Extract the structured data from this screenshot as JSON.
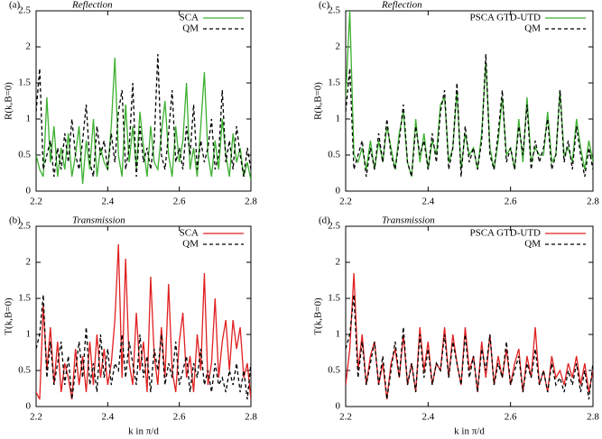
{
  "chart_data": [
    {
      "type": "line",
      "panel_label": "(a)",
      "subtitle": "Reflection",
      "ylabel": "R(k,B=0)",
      "legend": "upper right",
      "xlim": [
        2.2,
        2.8
      ],
      "ylim": [
        0,
        2.5
      ],
      "xticks": [
        2.2,
        2.4,
        2.6,
        2.8
      ],
      "yticks": [
        0,
        0.5,
        1,
        1.5,
        2,
        2.5
      ],
      "x": [
        2.2,
        2.21,
        2.22,
        2.23,
        2.24,
        2.25,
        2.26,
        2.27,
        2.28,
        2.29,
        2.3,
        2.31,
        2.32,
        2.33,
        2.34,
        2.35,
        2.36,
        2.37,
        2.38,
        2.39,
        2.4,
        2.41,
        2.42,
        2.43,
        2.44,
        2.45,
        2.46,
        2.47,
        2.48,
        2.49,
        2.5,
        2.51,
        2.52,
        2.53,
        2.54,
        2.55,
        2.56,
        2.57,
        2.58,
        2.59,
        2.6,
        2.61,
        2.62,
        2.63,
        2.64,
        2.65,
        2.66,
        2.67,
        2.68,
        2.69,
        2.7,
        2.71,
        2.72,
        2.73,
        2.74,
        2.75,
        2.76,
        2.77,
        2.78,
        2.79,
        2.8
      ],
      "series": [
        {
          "name": "SCA",
          "color": "#3cb030",
          "linestyle": "solid",
          "values": [
            0.5,
            0.3,
            0.2,
            1.3,
            0.4,
            0.9,
            0.2,
            0.6,
            0.3,
            0.8,
            0.2,
            0.5,
            0.9,
            0.1,
            0.7,
            0.3,
            1.0,
            0.2,
            0.6,
            0.4,
            0.3,
            0.9,
            1.85,
            0.5,
            0.2,
            1.2,
            0.4,
            0.9,
            0.3,
            1.1,
            0.6,
            0.2,
            0.9,
            0.4,
            0.3,
            0.8,
            1.25,
            0.5,
            0.2,
            0.9,
            0.4,
            0.7,
            1.5,
            0.3,
            0.6,
            0.2,
            0.9,
            1.65,
            0.5,
            0.2,
            0.7,
            0.3,
            1.0,
            0.5,
            0.2,
            0.8,
            0.4,
            0.6,
            0.2,
            0.4,
            0.15
          ]
        },
        {
          "name": "QM",
          "color": "#000000",
          "linestyle": "dashed",
          "values": [
            1.1,
            1.7,
            0.3,
            0.5,
            0.7,
            0.2,
            0.6,
            0.3,
            0.8,
            0.4,
            1.0,
            0.5,
            0.3,
            0.7,
            1.2,
            0.4,
            0.2,
            0.9,
            0.5,
            0.7,
            0.3,
            0.8,
            0.4,
            1.1,
            1.4,
            0.3,
            0.6,
            1.5,
            0.2,
            0.9,
            0.4,
            0.6,
            0.3,
            0.7,
            1.9,
            0.5,
            0.3,
            0.8,
            1.4,
            0.4,
            0.6,
            0.3,
            0.9,
            0.5,
            1.2,
            0.3,
            0.7,
            0.4,
            0.6,
            1.0,
            0.3,
            0.5,
            1.4,
            0.4,
            0.7,
            0.3,
            0.9,
            0.5,
            0.2,
            0.6,
            0.3
          ]
        }
      ]
    },
    {
      "type": "line",
      "panel_label": "(b)",
      "subtitle": "Transmission",
      "ylabel": "T(k,B=0)",
      "xlabel": "k in π/d",
      "legend": "upper right",
      "xlim": [
        2.2,
        2.8
      ],
      "ylim": [
        0,
        2.5
      ],
      "xticks": [
        2.2,
        2.4,
        2.6,
        2.8
      ],
      "yticks": [
        0,
        0.5,
        1,
        1.5,
        2,
        2.5
      ],
      "x": [
        2.2,
        2.21,
        2.22,
        2.23,
        2.24,
        2.25,
        2.26,
        2.27,
        2.28,
        2.29,
        2.3,
        2.31,
        2.32,
        2.33,
        2.34,
        2.35,
        2.36,
        2.37,
        2.38,
        2.39,
        2.4,
        2.41,
        2.42,
        2.43,
        2.44,
        2.45,
        2.46,
        2.47,
        2.48,
        2.49,
        2.5,
        2.51,
        2.52,
        2.53,
        2.54,
        2.55,
        2.56,
        2.57,
        2.58,
        2.59,
        2.6,
        2.61,
        2.62,
        2.63,
        2.64,
        2.65,
        2.66,
        2.67,
        2.68,
        2.69,
        2.7,
        2.71,
        2.72,
        2.73,
        2.74,
        2.75,
        2.76,
        2.77,
        2.78,
        2.79,
        2.8
      ],
      "series": [
        {
          "name": "SCA",
          "color": "#e02020",
          "linestyle": "solid",
          "values": [
            0.2,
            0.1,
            1.4,
            0.5,
            1.1,
            0.3,
            0.9,
            0.2,
            0.6,
            0.4,
            0.1,
            0.8,
            0.3,
            0.7,
            0.2,
            0.9,
            0.3,
            1.0,
            0.4,
            0.8,
            0.3,
            0.6,
            1.2,
            2.25,
            0.4,
            2.05,
            0.6,
            0.3,
            1.3,
            0.5,
            0.9,
            0.2,
            1.8,
            0.7,
            0.3,
            1.1,
            0.4,
            1.7,
            0.5,
            0.2,
            0.9,
            1.3,
            0.4,
            0.7,
            0.2,
            1.0,
            0.5,
            1.85,
            0.3,
            0.6,
            1.5,
            0.4,
            0.9,
            1.2,
            0.5,
            1.2,
            0.8,
            1.1,
            0.4,
            0.6,
            0.1
          ]
        },
        {
          "name": "QM",
          "color": "#000000",
          "linestyle": "dashed",
          "values": [
            0.8,
            1.0,
            1.55,
            0.4,
            0.9,
            0.3,
            0.6,
            0.9,
            0.3,
            0.7,
            0.1,
            0.5,
            0.9,
            0.4,
            1.1,
            0.3,
            0.6,
            0.2,
            1.0,
            0.4,
            0.8,
            0.3,
            0.6,
            0.5,
            1.0,
            0.4,
            0.9,
            0.6,
            0.3,
            1.0,
            0.4,
            0.7,
            0.2,
            0.8,
            0.5,
            1.0,
            0.3,
            0.6,
            0.4,
            0.9,
            0.3,
            0.5,
            0.7,
            0.2,
            0.6,
            0.4,
            0.8,
            0.3,
            0.5,
            0.2,
            0.6,
            0.3,
            0.4,
            0.2,
            0.5,
            0.3,
            0.6,
            0.2,
            0.5,
            0.1,
            0.6
          ]
        }
      ]
    },
    {
      "type": "line",
      "panel_label": "(c)",
      "subtitle": "Reflection",
      "ylabel": "R(k,B=0)",
      "legend": "upper right",
      "xlim": [
        2.2,
        2.8
      ],
      "ylim": [
        0,
        2.5
      ],
      "xticks": [
        2.2,
        2.4,
        2.6,
        2.8
      ],
      "yticks": [
        0,
        0.5,
        1,
        1.5,
        2,
        2.5
      ],
      "x": [
        2.2,
        2.21,
        2.22,
        2.23,
        2.24,
        2.25,
        2.26,
        2.27,
        2.28,
        2.29,
        2.3,
        2.31,
        2.32,
        2.33,
        2.34,
        2.35,
        2.36,
        2.37,
        2.38,
        2.39,
        2.4,
        2.41,
        2.42,
        2.43,
        2.44,
        2.45,
        2.46,
        2.47,
        2.48,
        2.49,
        2.5,
        2.51,
        2.52,
        2.53,
        2.54,
        2.55,
        2.56,
        2.57,
        2.58,
        2.59,
        2.6,
        2.61,
        2.62,
        2.63,
        2.64,
        2.65,
        2.66,
        2.67,
        2.68,
        2.69,
        2.7,
        2.71,
        2.72,
        2.73,
        2.74,
        2.75,
        2.76,
        2.77,
        2.78,
        2.79,
        2.8
      ],
      "series": [
        {
          "name": "PSCA GTD-UTD",
          "color": "#3cb030",
          "linestyle": "solid",
          "values": [
            1.3,
            2.5,
            0.5,
            0.4,
            0.6,
            0.3,
            0.7,
            0.3,
            0.7,
            0.4,
            0.9,
            0.6,
            0.3,
            0.8,
            1.1,
            0.4,
            0.2,
            1.0,
            0.4,
            0.8,
            0.3,
            0.7,
            0.5,
            1.2,
            1.3,
            0.4,
            0.6,
            1.4,
            0.3,
            0.8,
            0.5,
            0.6,
            0.3,
            0.8,
            1.8,
            0.6,
            0.3,
            0.7,
            1.3,
            0.5,
            0.6,
            0.3,
            1.0,
            0.4,
            1.3,
            0.4,
            0.6,
            0.5,
            0.5,
            1.1,
            0.4,
            0.5,
            1.4,
            0.5,
            0.6,
            0.4,
            1.0,
            0.6,
            0.3,
            0.7,
            0.4
          ]
        },
        {
          "name": "QM",
          "color": "#000000",
          "linestyle": "dashed",
          "values": [
            1.1,
            1.7,
            0.3,
            0.5,
            0.7,
            0.2,
            0.6,
            0.3,
            0.8,
            0.4,
            1.0,
            0.5,
            0.3,
            0.7,
            1.2,
            0.4,
            0.2,
            0.9,
            0.5,
            0.7,
            0.3,
            0.8,
            0.4,
            1.1,
            1.4,
            0.3,
            0.6,
            1.5,
            0.2,
            0.9,
            0.4,
            0.6,
            0.3,
            0.7,
            1.9,
            0.5,
            0.3,
            0.8,
            1.4,
            0.4,
            0.6,
            0.3,
            0.9,
            0.5,
            1.2,
            0.3,
            0.7,
            0.4,
            0.6,
            1.0,
            0.3,
            0.5,
            1.4,
            0.4,
            0.7,
            0.3,
            0.9,
            0.5,
            0.2,
            0.6,
            0.3
          ]
        }
      ]
    },
    {
      "type": "line",
      "panel_label": "(d)",
      "subtitle": "Transmission",
      "ylabel": "T(k,B=0)",
      "xlabel": "k in π/d",
      "legend": "upper right",
      "xlim": [
        2.2,
        2.8
      ],
      "ylim": [
        0,
        2.5
      ],
      "xticks": [
        2.2,
        2.4,
        2.6,
        2.8
      ],
      "yticks": [
        0,
        0.5,
        1,
        1.5,
        2,
        2.5
      ],
      "x": [
        2.2,
        2.21,
        2.22,
        2.23,
        2.24,
        2.25,
        2.26,
        2.27,
        2.28,
        2.29,
        2.3,
        2.31,
        2.32,
        2.33,
        2.34,
        2.35,
        2.36,
        2.37,
        2.38,
        2.39,
        2.4,
        2.41,
        2.42,
        2.43,
        2.44,
        2.45,
        2.46,
        2.47,
        2.48,
        2.49,
        2.5,
        2.51,
        2.52,
        2.53,
        2.54,
        2.55,
        2.56,
        2.57,
        2.58,
        2.59,
        2.6,
        2.61,
        2.62,
        2.63,
        2.64,
        2.65,
        2.66,
        2.67,
        2.68,
        2.69,
        2.7,
        2.71,
        2.72,
        2.73,
        2.74,
        2.75,
        2.76,
        2.77,
        2.78,
        2.79,
        2.8
      ],
      "series": [
        {
          "name": "PSCA GTD-UTD",
          "color": "#e02020",
          "linestyle": "solid",
          "values": [
            0.3,
            0.8,
            1.85,
            0.5,
            1.0,
            0.3,
            0.7,
            0.9,
            0.3,
            0.6,
            0.1,
            0.6,
            0.8,
            0.4,
            1.0,
            0.3,
            0.6,
            0.2,
            1.1,
            0.5,
            0.9,
            0.3,
            0.6,
            0.5,
            1.1,
            0.4,
            1.0,
            0.6,
            0.3,
            1.1,
            0.5,
            0.7,
            0.2,
            0.9,
            0.4,
            1.0,
            0.3,
            0.7,
            0.4,
            0.8,
            0.3,
            0.6,
            0.8,
            0.2,
            0.7,
            0.4,
            1.1,
            0.3,
            0.5,
            0.2,
            0.7,
            0.4,
            0.5,
            0.3,
            0.6,
            0.4,
            0.7,
            0.3,
            0.6,
            0.2,
            0.5
          ]
        },
        {
          "name": "QM",
          "color": "#000000",
          "linestyle": "dashed",
          "values": [
            0.8,
            1.0,
            1.55,
            0.4,
            0.9,
            0.3,
            0.6,
            0.9,
            0.3,
            0.7,
            0.1,
            0.5,
            0.9,
            0.4,
            1.1,
            0.3,
            0.6,
            0.2,
            1.0,
            0.4,
            0.8,
            0.3,
            0.6,
            0.5,
            1.0,
            0.4,
            0.9,
            0.6,
            0.3,
            1.0,
            0.4,
            0.7,
            0.2,
            0.8,
            0.5,
            1.0,
            0.3,
            0.6,
            0.4,
            0.9,
            0.3,
            0.5,
            0.7,
            0.2,
            0.6,
            0.4,
            0.8,
            0.3,
            0.5,
            0.2,
            0.6,
            0.3,
            0.4,
            0.2,
            0.5,
            0.3,
            0.6,
            0.2,
            0.5,
            0.1,
            0.6
          ]
        }
      ]
    }
  ]
}
